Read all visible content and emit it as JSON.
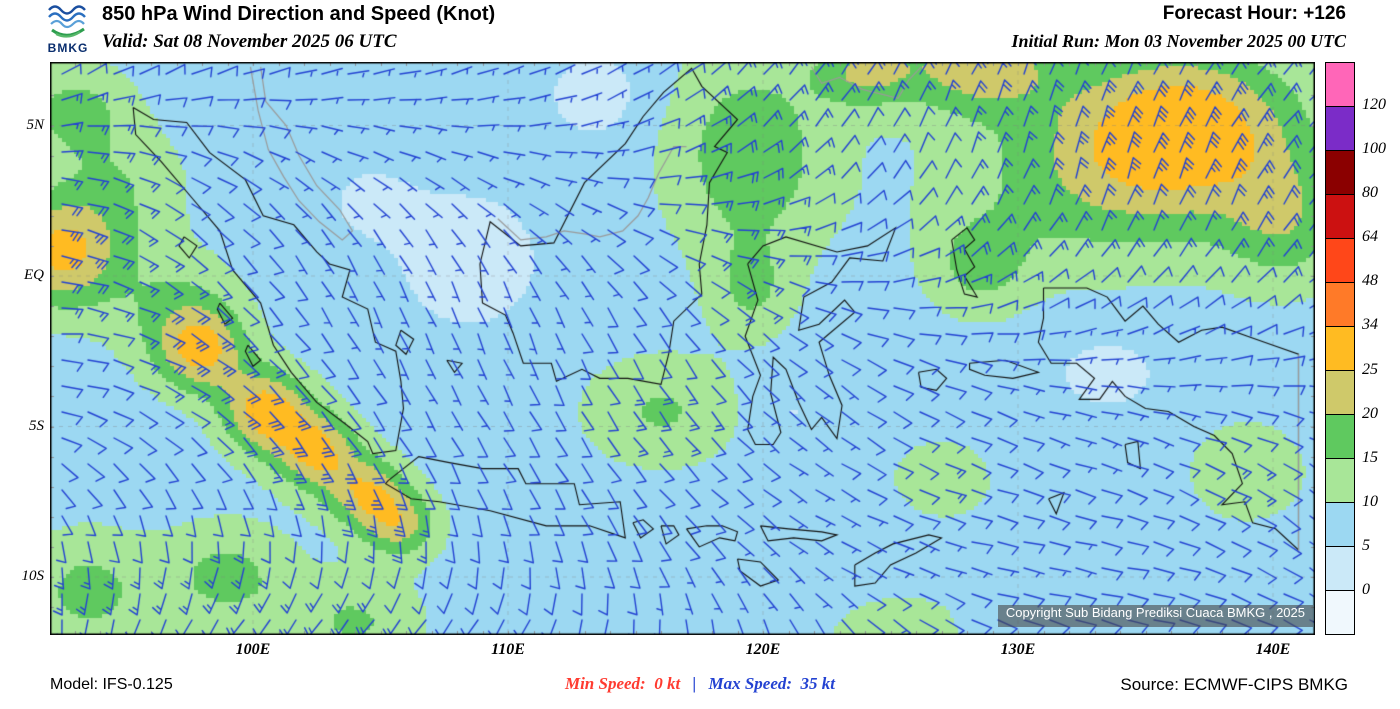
{
  "header": {
    "title": "850 hPa Wind Direction and Speed (Knot)",
    "valid": "Valid: Sat 08 November 2025 06 UTC",
    "forecast_hour": "Forecast Hour: +126",
    "initial_run": "Initial Run: Mon 03 November 2025 00 UTC",
    "logo_text": "BMKG"
  },
  "map": {
    "copyright": "Copyright Sub Bidang Prediksi Cuaca BMKG , 2025",
    "lat_ticks": [
      {
        "label": "5N",
        "lat": 5
      },
      {
        "label": "EQ",
        "lat": 0
      },
      {
        "label": "5S",
        "lat": -5
      },
      {
        "label": "10S",
        "lat": -10
      }
    ],
    "lon_ticks": [
      {
        "label": "100E",
        "lon": 100
      },
      {
        "label": "110E",
        "lon": 110
      },
      {
        "label": "120E",
        "lon": 120
      },
      {
        "label": "130E",
        "lon": 130
      },
      {
        "label": "140E",
        "lon": 140
      }
    ]
  },
  "legend": {
    "labels": [
      "120",
      "100",
      "80",
      "64",
      "48",
      "34",
      "25",
      "20",
      "15",
      "10",
      "5",
      "0"
    ],
    "segments": [
      "#FF66B8",
      "#7B2CC8",
      "#8B0000",
      "#CC1111",
      "#FF4719",
      "#FF7A28",
      "#FFBB22",
      "#CFC96A",
      "#5FC95F",
      "#A8E698",
      "#9CD8F2",
      "#CBE9F8",
      "#F0F8FD"
    ]
  },
  "colors": {
    "barb": "#2342D2",
    "coast": "#101010",
    "foreign_coast": "#9A9A9A",
    "grid": "#8C9196",
    "min_red": "#FF3B30",
    "max_blue": "#2342D2"
  },
  "footer": {
    "model": "Model: IFS-0.125",
    "min_label": "Min Speed:",
    "min_value": "0 kt",
    "sep": "|",
    "max_label": "Max Speed:",
    "max_value": "35 kt",
    "source": "Source: ECMWF-CIPS BMKG"
  },
  "chart_data": {
    "type": "heatmap",
    "title": "850 hPa Wind Direction and Speed (Knot)",
    "units": "kt",
    "legend_values": [
      120,
      100,
      80,
      64,
      48,
      34,
      25,
      20,
      15,
      10,
      5,
      0
    ],
    "min_speed_kt": 0,
    "max_speed_kt": 35,
    "lat_ticks": [
      "5N",
      "EQ",
      "5S",
      "10S"
    ],
    "lon_ticks": [
      "100E",
      "110E",
      "120E",
      "130E",
      "140E"
    ],
    "legend_position": "right"
  }
}
